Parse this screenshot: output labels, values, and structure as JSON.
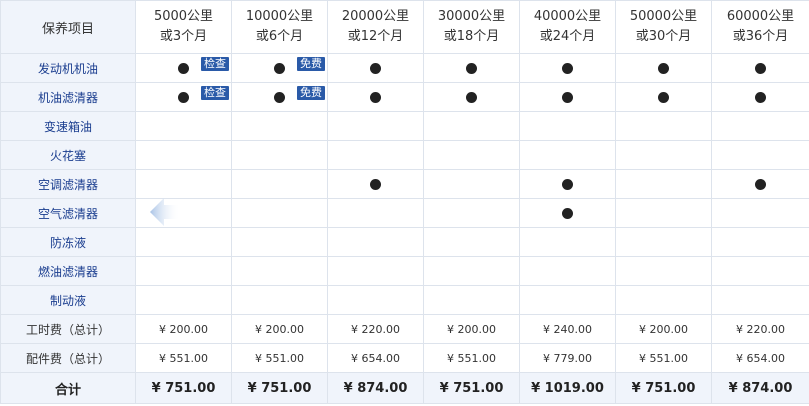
{
  "corner_label": "保养项目",
  "columns": [
    {
      "line1": "5000公里",
      "line2": "或3个月"
    },
    {
      "line1": "10000公里",
      "line2": "或6个月"
    },
    {
      "line1": "20000公里",
      "line2": "或12个月"
    },
    {
      "line1": "30000公里",
      "line2": "或18个月"
    },
    {
      "line1": "40000公里",
      "line2": "或24个月"
    },
    {
      "line1": "50000公里",
      "line2": "或30个月"
    },
    {
      "line1": "60000公里",
      "line2": "或36个月"
    }
  ],
  "items": [
    {
      "label": "发动机机油",
      "marks": [
        true,
        true,
        true,
        true,
        true,
        true,
        true
      ],
      "tags": [
        "检查",
        "免费",
        "",
        "",
        "",
        "",
        ""
      ]
    },
    {
      "label": "机油滤清器",
      "marks": [
        true,
        true,
        true,
        true,
        true,
        true,
        true
      ],
      "tags": [
        "检查",
        "免费",
        "",
        "",
        "",
        "",
        ""
      ]
    },
    {
      "label": "变速箱油",
      "marks": [
        false,
        false,
        false,
        false,
        false,
        false,
        false
      ],
      "tags": [
        "",
        "",
        "",
        "",
        "",
        "",
        ""
      ]
    },
    {
      "label": "火花塞",
      "marks": [
        false,
        false,
        false,
        false,
        false,
        false,
        false
      ],
      "tags": [
        "",
        "",
        "",
        "",
        "",
        "",
        ""
      ]
    },
    {
      "label": "空调滤清器",
      "marks": [
        false,
        false,
        true,
        false,
        true,
        false,
        true
      ],
      "tags": [
        "",
        "",
        "",
        "",
        "",
        "",
        ""
      ]
    },
    {
      "label": "空气滤清器",
      "marks": [
        false,
        false,
        false,
        false,
        true,
        false,
        false
      ],
      "tags": [
        "",
        "",
        "",
        "",
        "",
        "",
        ""
      ]
    },
    {
      "label": "防冻液",
      "marks": [
        false,
        false,
        false,
        false,
        false,
        false,
        false
      ],
      "tags": [
        "",
        "",
        "",
        "",
        "",
        "",
        ""
      ]
    },
    {
      "label": "燃油滤清器",
      "marks": [
        false,
        false,
        false,
        false,
        false,
        false,
        false
      ],
      "tags": [
        "",
        "",
        "",
        "",
        "",
        "",
        ""
      ]
    },
    {
      "label": "制动液",
      "marks": [
        false,
        false,
        false,
        false,
        false,
        false,
        false
      ],
      "tags": [
        "",
        "",
        "",
        "",
        "",
        "",
        ""
      ]
    }
  ],
  "labor": {
    "label": "工时费（总计）",
    "values": [
      "¥ 200.00",
      "¥ 200.00",
      "¥ 220.00",
      "¥ 200.00",
      "¥ 240.00",
      "¥ 200.00",
      "¥ 220.00"
    ]
  },
  "parts": {
    "label": "配件费（总计）",
    "values": [
      "¥ 551.00",
      "¥ 551.00",
      "¥ 654.00",
      "¥ 551.00",
      "¥ 779.00",
      "¥ 551.00",
      "¥ 654.00"
    ]
  },
  "total": {
    "label": "合计",
    "values": [
      "¥ 751.00",
      "¥ 751.00",
      "¥ 874.00",
      "¥ 751.00",
      "¥ 1019.00",
      "¥ 751.00",
      "¥ 874.00"
    ]
  },
  "icons": {
    "mark": "filled-circle-icon",
    "arrow": "arrow-left-icon"
  },
  "colors": {
    "header_bg": "#f0f4fb",
    "item_label": "#1a3d8f",
    "tag_bg": "#2a5aa8",
    "border": "#dde3ec"
  }
}
